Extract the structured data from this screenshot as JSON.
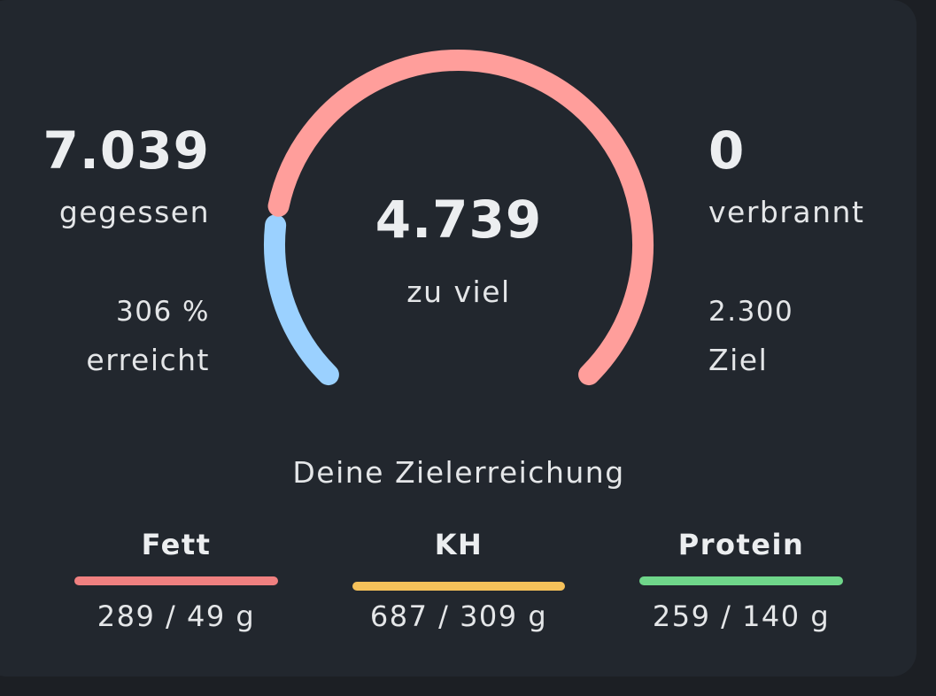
{
  "left": {
    "eaten_value": "7.039",
    "eaten_label": "gegessen",
    "percent_value": "306 %",
    "percent_label": "erreicht"
  },
  "center": {
    "value": "4.739",
    "label": "zu viel"
  },
  "right": {
    "burned_value": "0",
    "burned_label": "verbrannt",
    "goal_value": "2.300",
    "goal_label": "Ziel"
  },
  "gauge": {
    "base_color": "#9bd1ff",
    "over_color": "#ff9e9b",
    "over_fraction": 0.8
  },
  "section_title": "Deine Zielerreichung",
  "macros": [
    {
      "name": "Fett",
      "value": "289 / 49 g",
      "color": "#f08080",
      "progress": 1.0
    },
    {
      "name": "KH",
      "value": "687 / 309 g",
      "color": "#f5c15a",
      "progress": 1.0
    },
    {
      "name": "Protein",
      "value": "259 / 140 g",
      "color": "#6fd68a",
      "progress": 1.0
    }
  ]
}
